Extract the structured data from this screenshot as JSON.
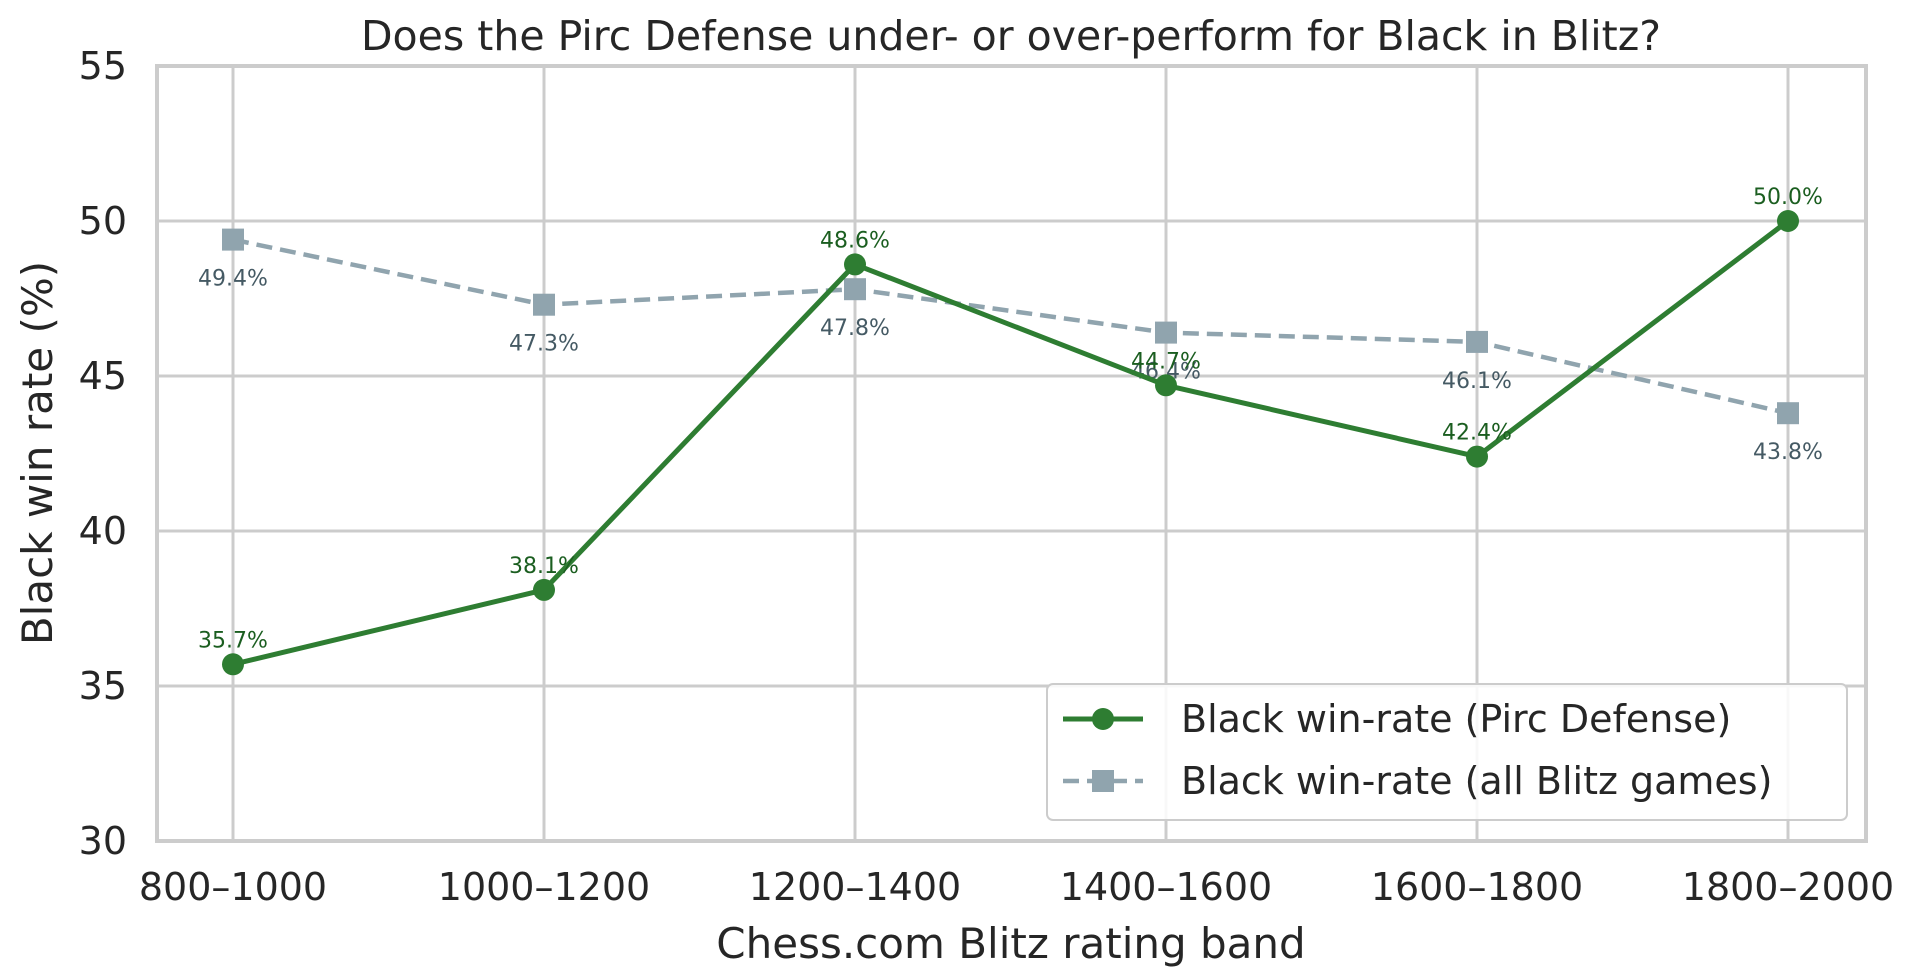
{
  "chart_data": {
    "type": "line",
    "title": "Does the Pirc Defense under- or over-perform for Black in Blitz?",
    "xlabel": "Chess.com Blitz rating band",
    "ylabel": "Black win rate (%)",
    "categories": [
      "800–1000",
      "1000–1200",
      "1200–1400",
      "1400–1600",
      "1600–1800",
      "1800–2000"
    ],
    "ylim": [
      30,
      55
    ],
    "yticks": [
      30,
      35,
      40,
      45,
      50,
      55
    ],
    "grid": true,
    "legend_position": "lower-right",
    "series": [
      {
        "name": "Black win-rate (Pirc Defense)",
        "values": [
          35.7,
          38.1,
          48.6,
          44.7,
          42.4,
          50.0
        ],
        "labels": [
          "35.7%",
          "38.1%",
          "48.6%",
          "44.7%",
          "42.4%",
          "50.0%"
        ],
        "color": "#2e7d32",
        "line_style": "solid",
        "marker": "circle"
      },
      {
        "name": "Black win-rate (all Blitz games)",
        "values": [
          49.4,
          47.3,
          47.8,
          46.4,
          46.1,
          43.8
        ],
        "labels": [
          "49.4%",
          "47.3%",
          "47.8%",
          "46.4%",
          "46.1%",
          "43.8%"
        ],
        "color": "#90a4ae",
        "line_style": "dashed",
        "marker": "square"
      }
    ]
  }
}
